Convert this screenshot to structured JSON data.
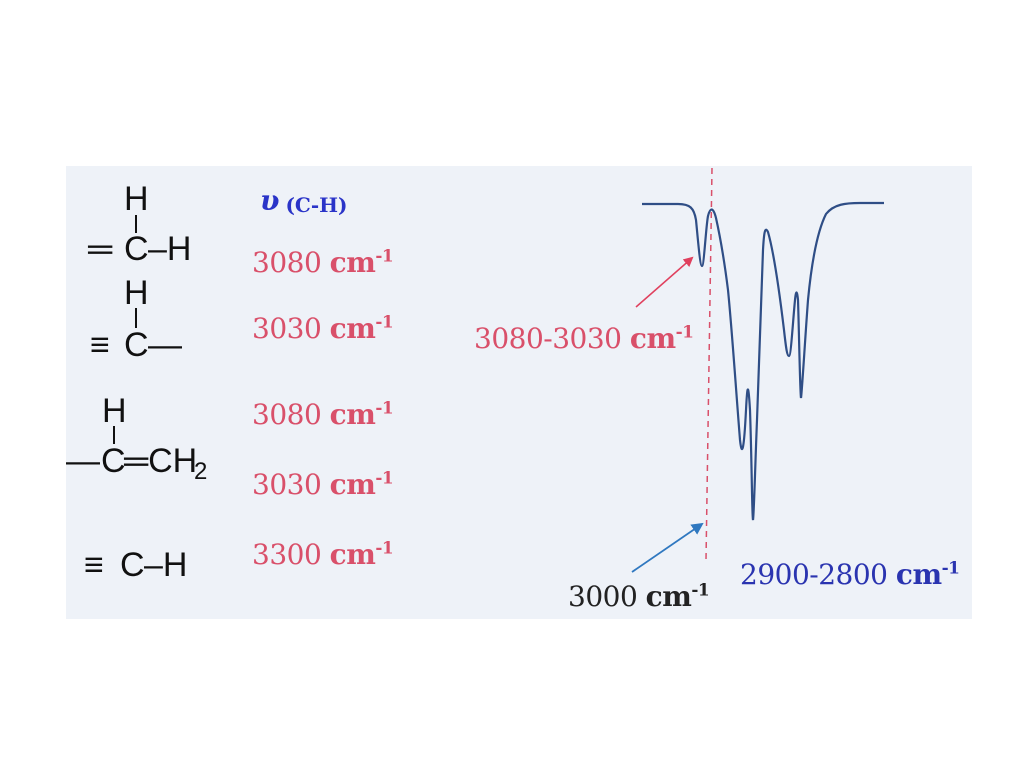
{
  "header": {
    "nu_symbol": "υ",
    "bond": "(C-H)"
  },
  "structures": [
    {
      "bond": "═",
      "atom": "C",
      "top": "H",
      "right": "–H"
    },
    {
      "bond": "≡",
      "atom": "C",
      "top": "H",
      "right": "—"
    },
    {
      "left": "—",
      "atom": "C",
      "top": "H",
      "right": "═CH",
      "subscript": "2"
    },
    {
      "bond": "≡",
      "atom": "C",
      "right": "–H"
    }
  ],
  "wavenumbers": [
    {
      "value": "3080",
      "unit": "cm",
      "exp": "-1"
    },
    {
      "value": "3030",
      "unit": "cm",
      "exp": "-1"
    },
    {
      "value": "3080",
      "unit": "cm",
      "exp": "-1"
    },
    {
      "value": "3030",
      "unit": "cm",
      "exp": "-1"
    },
    {
      "value": "3300",
      "unit": "cm",
      "exp": "-1"
    }
  ],
  "annotations": {
    "left_peak": {
      "value": "3080-3030",
      "unit": "cm",
      "exp": "-1"
    },
    "divider": {
      "value": "3000",
      "unit": "cm",
      "exp": "-1"
    },
    "right_peak": {
      "value": "2900-2800",
      "unit": "cm",
      "exp": "-1"
    }
  },
  "colors": {
    "background": "#eef2f8",
    "wavenumber": "#d9506a",
    "nu_label": "#2a34c8",
    "spectrum_line": "#2f4e86",
    "divider_line": "#d9506a",
    "arrow_red": "#e0405e",
    "arrow_blue": "#2f78c0",
    "label_dark": "#222222",
    "label_blue": "#2a34b0"
  }
}
